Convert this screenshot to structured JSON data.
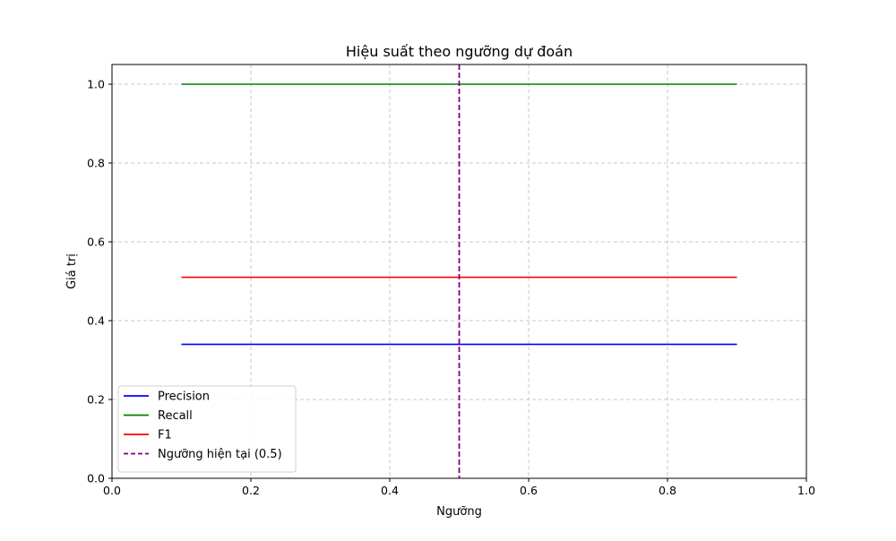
{
  "chart_data": {
    "type": "line",
    "title": "Hiệu suất theo ngưỡng dự đoán",
    "xlabel": "Ngưỡng",
    "ylabel": "Giá trị",
    "xlim": [
      0.0,
      1.0
    ],
    "ylim": [
      0.0,
      1.05
    ],
    "xticks": [
      0.0,
      0.2,
      0.4,
      0.6,
      0.8,
      1.0
    ],
    "xtick_labels": [
      "0.0",
      "0.2",
      "0.4",
      "0.6",
      "0.8",
      "1.0"
    ],
    "yticks": [
      0.0,
      0.2,
      0.4,
      0.6,
      0.8,
      1.0
    ],
    "ytick_labels": [
      "0.0",
      "0.2",
      "0.4",
      "0.6",
      "0.8",
      "1.0"
    ],
    "grid": true,
    "legend_position": "lower-left",
    "series": [
      {
        "name": "Precision",
        "color": "#0000ff",
        "style": "solid",
        "x": [
          0.1,
          0.9
        ],
        "y": [
          0.34,
          0.34
        ]
      },
      {
        "name": "Recall",
        "color": "#008000",
        "style": "solid",
        "x": [
          0.1,
          0.9
        ],
        "y": [
          1.0,
          1.0
        ]
      },
      {
        "name": "F1",
        "color": "#ff0000",
        "style": "solid",
        "x": [
          0.1,
          0.9
        ],
        "y": [
          0.51,
          0.51
        ]
      }
    ],
    "vlines": [
      {
        "name": "Ngưỡng hiện tại (0.5)",
        "color": "#800080",
        "style": "dashed",
        "x": 0.5
      }
    ]
  }
}
